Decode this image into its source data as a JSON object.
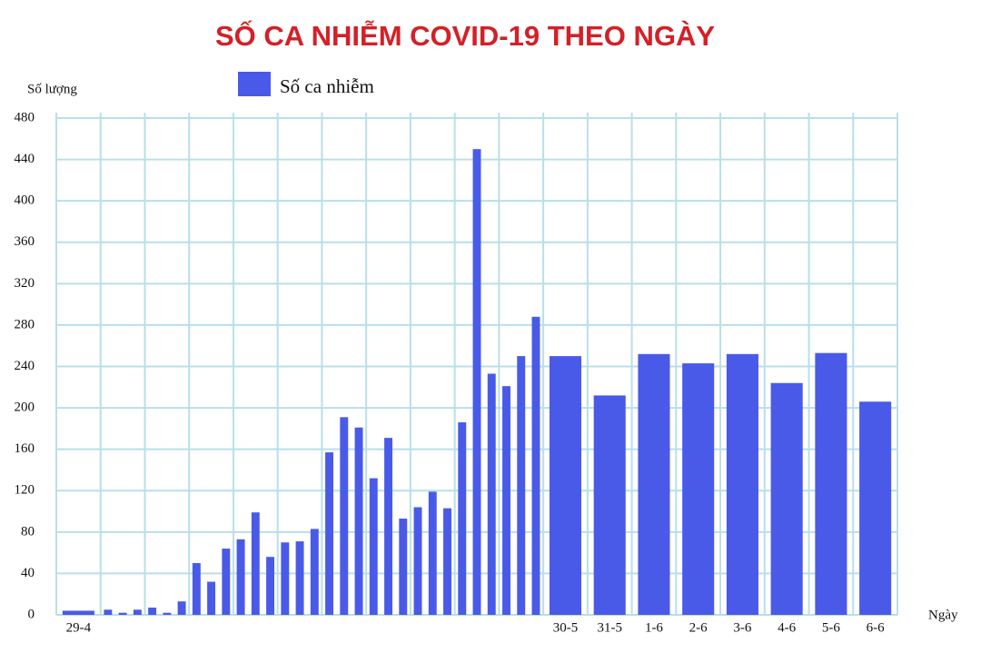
{
  "chart_data": {
    "type": "bar",
    "title": "SỐ CA NHIỄM COVID-19 THEO NGÀY",
    "y_label": "Số lượng",
    "x_label": "Ngày",
    "series": [
      {
        "name": "Số ca nhiễm",
        "color": "#4a5ae8",
        "values": [
          4,
          5,
          2,
          5,
          7,
          2,
          13,
          50,
          32,
          64,
          73,
          99,
          56,
          70,
          71,
          83,
          157,
          191,
          181,
          132,
          171,
          93,
          104,
          119,
          103,
          186,
          450,
          233,
          221,
          250,
          288,
          250,
          212,
          252,
          243,
          252,
          224,
          253,
          206
        ]
      }
    ],
    "categories": [
      "29-4",
      null,
      null,
      null,
      null,
      null,
      null,
      null,
      null,
      null,
      null,
      null,
      null,
      null,
      null,
      null,
      null,
      null,
      null,
      null,
      null,
      null,
      null,
      null,
      null,
      null,
      null,
      null,
      null,
      null,
      null,
      "30-5",
      "31-5",
      "1-6",
      "2-6",
      "3-6",
      "4-6",
      "5-6",
      "6-6"
    ],
    "ylim": [
      0,
      480
    ],
    "yticks": [
      0,
      40,
      80,
      120,
      160,
      200,
      240,
      280,
      320,
      360,
      400,
      440,
      480
    ],
    "grid": true
  }
}
